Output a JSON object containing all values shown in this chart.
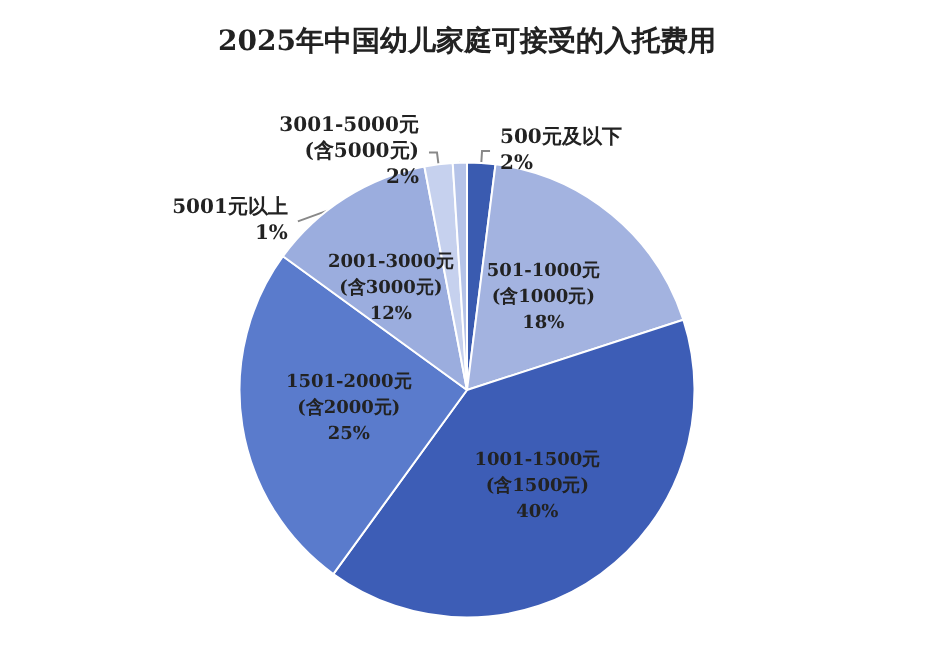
{
  "chart_data": {
    "type": "pie",
    "title": "2025年中国幼儿家庭可接受的入托费用",
    "categories": [
      "500元及以下",
      "501-1000元(含1000元)",
      "1001-1500元(含1500元)",
      "1501-2000元(含2000元)",
      "2001-3000元(含3000元)",
      "3001-5000元(含5000元)",
      "5001元以上"
    ],
    "values": [
      2,
      18,
      40,
      25,
      12,
      2,
      1
    ],
    "value_labels": [
      "2%",
      "18%",
      "40%",
      "25%",
      "12%",
      "2%",
      "1%"
    ],
    "colors": [
      "#3a5bb0",
      "#a3b3e0",
      "#3d5db6",
      "#5a7bcc",
      "#9badde",
      "#c6d1ee",
      "#b5c3e8"
    ]
  }
}
